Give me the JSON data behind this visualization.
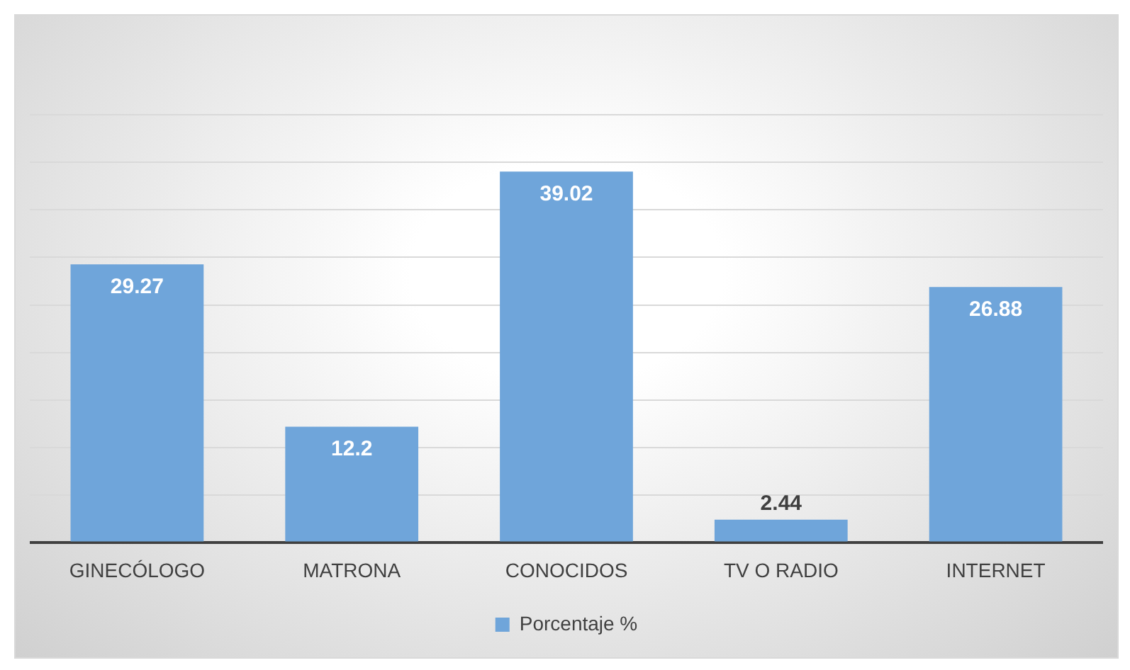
{
  "chart_data": {
    "type": "bar",
    "categories": [
      "GINECÓLOGO",
      "MATRONA",
      "CONOCIDOS",
      "TV O RADIO",
      "INTERNET"
    ],
    "series": [
      {
        "name": "Porcentaje %",
        "color": "#6fa5da",
        "values": [
          29.27,
          12.2,
          39.02,
          2.44,
          26.88
        ]
      }
    ],
    "ylim": [
      0,
      45
    ],
    "yticks": [
      {
        "value": 0,
        "label": null
      },
      {
        "value": 5,
        "label": null
      },
      {
        "value": 10,
        "label": null
      },
      {
        "value": 15,
        "label": null
      },
      {
        "value": 20,
        "label": null
      },
      {
        "value": 25,
        "label": null
      },
      {
        "value": 30,
        "label": null
      },
      {
        "value": 35,
        "label": null
      },
      {
        "value": 40,
        "label": null
      },
      {
        "value": 45,
        "label": null
      }
    ],
    "tick_labels": "x",
    "grid": "y",
    "legend": "bottom",
    "data_labels": true
  }
}
